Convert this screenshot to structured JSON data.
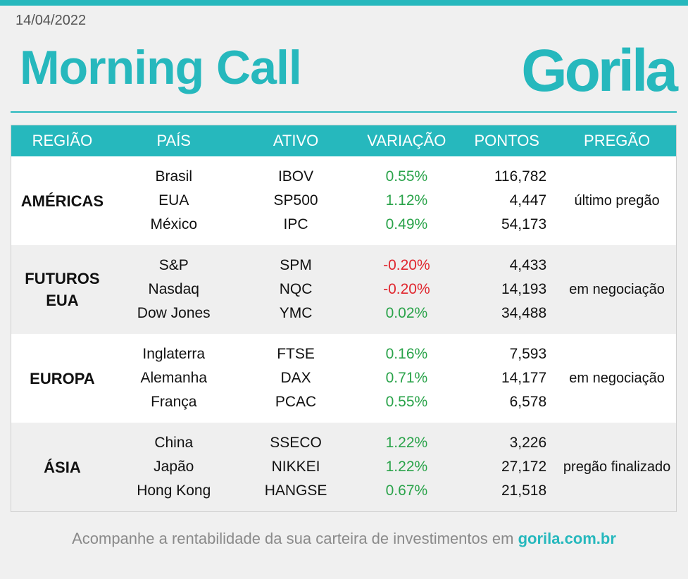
{
  "date": "14/04/2022",
  "title": "Morning Call",
  "logo_text": "Gorila",
  "accent_color": "#26b8bd",
  "headers": [
    "REGIÃO",
    "PAÍS",
    "ATIVO",
    "VARIAÇÃO",
    "PONTOS",
    "PREGÃO"
  ],
  "groups": [
    {
      "region": "AMÉRICAS",
      "status": "último pregão",
      "rows": [
        {
          "country": "Brasil",
          "asset": "IBOV",
          "change": "0.55%",
          "points": "116,782"
        },
        {
          "country": "EUA",
          "asset": "SP500",
          "change": "1.12%",
          "points": "4,447"
        },
        {
          "country": "México",
          "asset": "IPC",
          "change": "0.49%",
          "points": "54,173"
        }
      ]
    },
    {
      "region": "FUTUROS EUA",
      "status": "em negociação",
      "rows": [
        {
          "country": "S&P",
          "asset": "SPM",
          "change": "-0.20%",
          "points": "4,433"
        },
        {
          "country": "Nasdaq",
          "asset": "NQC",
          "change": "-0.20%",
          "points": "14,193"
        },
        {
          "country": "Dow Jones",
          "asset": "YMC",
          "change": "0.02%",
          "points": "34,488"
        }
      ]
    },
    {
      "region": "EUROPA",
      "status": "em negociação",
      "rows": [
        {
          "country": "Inglaterra",
          "asset": "FTSE",
          "change": "0.16%",
          "points": "7,593"
        },
        {
          "country": "Alemanha",
          "asset": "DAX",
          "change": "0.71%",
          "points": "14,177"
        },
        {
          "country": "França",
          "asset": "PCAC",
          "change": "0.55%",
          "points": "6,578"
        }
      ]
    },
    {
      "region": "ÁSIA",
      "status": "pregão finalizado",
      "rows": [
        {
          "country": "China",
          "asset": "SSECO",
          "change": "1.22%",
          "points": "3,226"
        },
        {
          "country": "Japão",
          "asset": "NIKKEI",
          "change": "1.22%",
          "points": "27,172"
        },
        {
          "country": "Hong Kong",
          "asset": "HANGSE",
          "change": "0.67%",
          "points": "21,518"
        }
      ]
    }
  ],
  "footer": {
    "text": "Acompanhe a rentabilidade da sua carteira de investimentos em ",
    "link": "gorila.com.br"
  }
}
